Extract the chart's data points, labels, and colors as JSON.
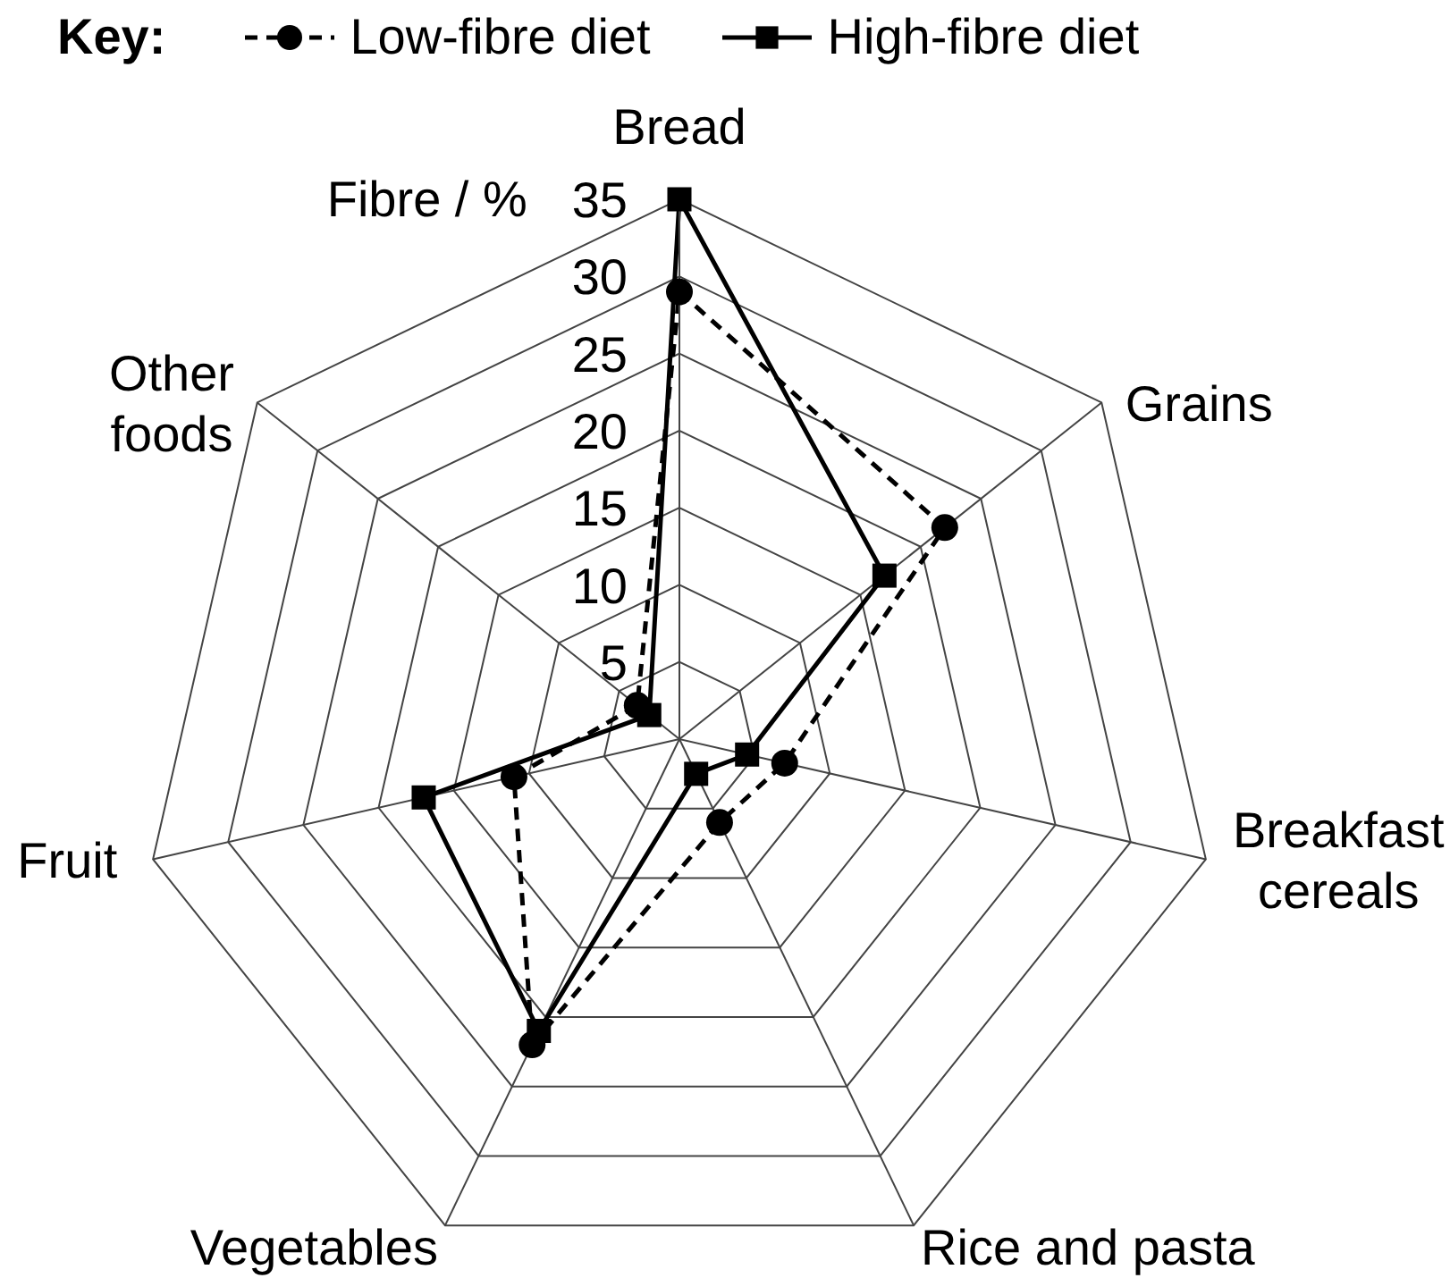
{
  "chart_data": {
    "type": "radar",
    "ylabel": "Fibre / %",
    "legend_title": "Key:",
    "legend": "top left",
    "grid": true,
    "categories": [
      "Bread",
      "Grains",
      "Breakfast cereals",
      "Rice and pasta",
      "Vegetables",
      "Fruit",
      "Other foods"
    ],
    "ylim": [
      0,
      35
    ],
    "yticks": [
      5,
      10,
      15,
      20,
      25,
      30,
      35
    ],
    "series": [
      {
        "name": "Low-fibre diet",
        "color": "#000000",
        "values": [
          29,
          22,
          7,
          6,
          22,
          11,
          3.5
        ],
        "marker": "circle",
        "line_style": "dashed"
      },
      {
        "name": "High-fibre diet",
        "color": "#000000",
        "values": [
          35,
          17,
          4.5,
          2.5,
          21,
          17,
          2.5
        ],
        "marker": "square",
        "line_style": "solid"
      }
    ]
  }
}
